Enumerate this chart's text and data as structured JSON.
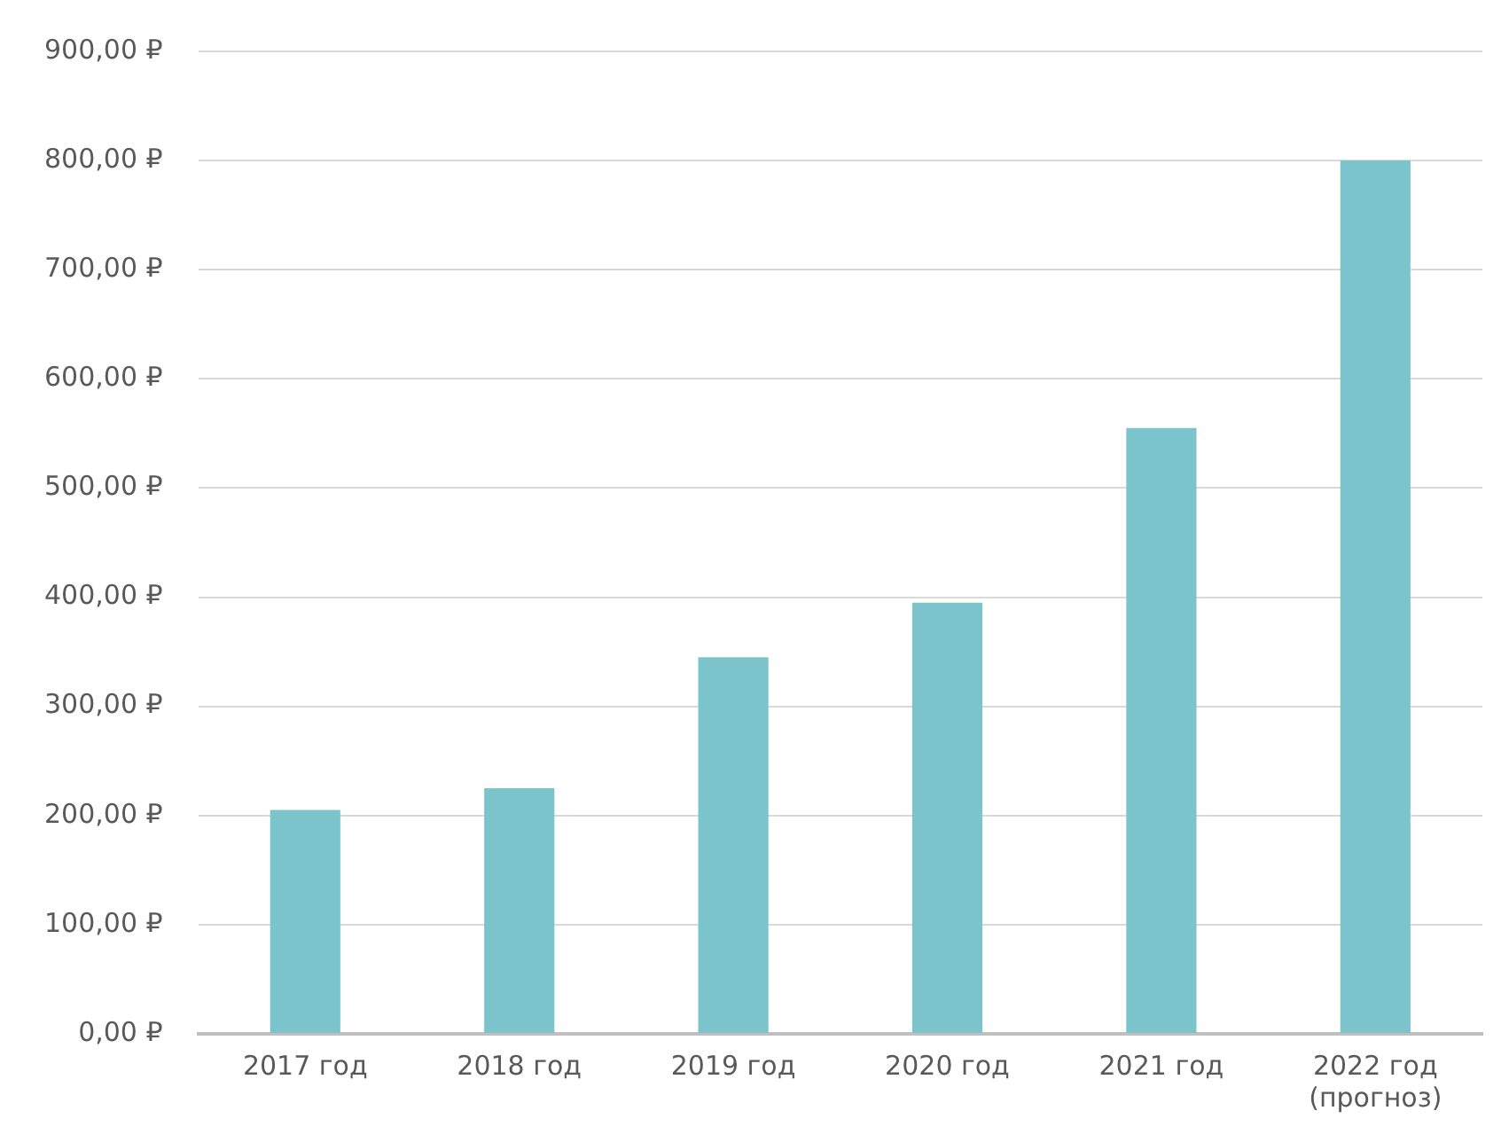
{
  "chart_data": {
    "type": "bar",
    "categories": [
      "2017 год",
      "2018 год",
      "2019 год",
      "2020 год",
      "2021 год",
      "2022 год\n(прогноз)"
    ],
    "values": [
      205,
      225,
      345,
      395,
      555,
      800
    ],
    "color": "#7cc4cc",
    "ylim": [
      0,
      900
    ],
    "yticks": [
      {
        "value": 0,
        "label": "0,00 ₽"
      },
      {
        "value": 100,
        "label": "100,00 ₽"
      },
      {
        "value": 200,
        "label": "200,00 ₽"
      },
      {
        "value": 300,
        "label": "300,00 ₽"
      },
      {
        "value": 400,
        "label": "400,00 ₽"
      },
      {
        "value": 500,
        "label": "500,00 ₽"
      },
      {
        "value": 600,
        "label": "600,00 ₽"
      },
      {
        "value": 700,
        "label": "700,00 ₽"
      },
      {
        "value": 800,
        "label": "800,00 ₽"
      },
      {
        "value": 900,
        "label": "900,00 ₽"
      }
    ],
    "grid": "y",
    "legend": false
  }
}
